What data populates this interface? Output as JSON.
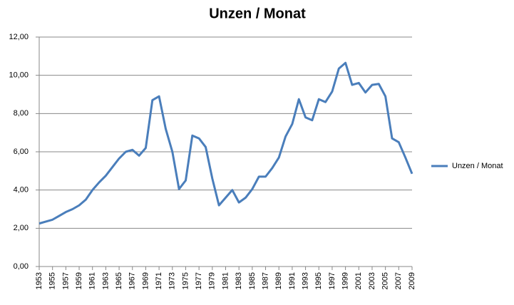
{
  "chart_data": {
    "type": "line",
    "title": "Unzen / Monat",
    "x": [
      1953,
      1954,
      1955,
      1956,
      1957,
      1958,
      1959,
      1960,
      1961,
      1962,
      1963,
      1964,
      1965,
      1966,
      1967,
      1968,
      1969,
      1970,
      1971,
      1972,
      1973,
      1974,
      1975,
      1976,
      1977,
      1978,
      1979,
      1980,
      1981,
      1982,
      1983,
      1984,
      1985,
      1986,
      1987,
      1988,
      1989,
      1990,
      1991,
      1992,
      1993,
      1994,
      1995,
      1996,
      1997,
      1998,
      1999,
      2000,
      2001,
      2002,
      2003,
      2004,
      2005,
      2006,
      2007,
      2008,
      2009
    ],
    "series": [
      {
        "name": "Unzen / Monat",
        "color": "#4a7ebb",
        "values": [
          2.25,
          2.35,
          2.45,
          2.65,
          2.85,
          3.0,
          3.2,
          3.5,
          4.0,
          4.4,
          4.75,
          5.2,
          5.65,
          6.0,
          6.1,
          5.8,
          6.2,
          8.7,
          8.9,
          7.2,
          6.0,
          4.05,
          4.5,
          6.85,
          6.7,
          6.25,
          4.6,
          3.2,
          3.6,
          4.0,
          3.35,
          3.6,
          4.05,
          4.7,
          4.7,
          5.15,
          5.7,
          6.8,
          7.45,
          8.75,
          7.8,
          7.65,
          8.75,
          8.6,
          9.15,
          10.35,
          10.65,
          9.5,
          9.6,
          9.1,
          9.5,
          9.55,
          8.9,
          6.7,
          6.5,
          5.7,
          4.85
        ]
      }
    ],
    "xlim": [
      1953,
      2009
    ],
    "xticks": [
      1953,
      1955,
      1957,
      1959,
      1961,
      1963,
      1965,
      1967,
      1969,
      1971,
      1973,
      1975,
      1977,
      1979,
      1981,
      1983,
      1985,
      1987,
      1989,
      1991,
      1993,
      1995,
      1997,
      1999,
      2001,
      2003,
      2005,
      2007,
      2009
    ],
    "ylim": [
      0,
      12
    ],
    "yticks": [
      {
        "value": 0,
        "label": "0,00"
      },
      {
        "value": 2,
        "label": "2,00"
      },
      {
        "value": 4,
        "label": "4,00"
      },
      {
        "value": 6,
        "label": "6,00"
      },
      {
        "value": 8,
        "label": "8,00"
      },
      {
        "value": 10,
        "label": "10,00"
      },
      {
        "value": 12,
        "label": "12,00"
      }
    ],
    "grid": true,
    "legend": "right"
  }
}
